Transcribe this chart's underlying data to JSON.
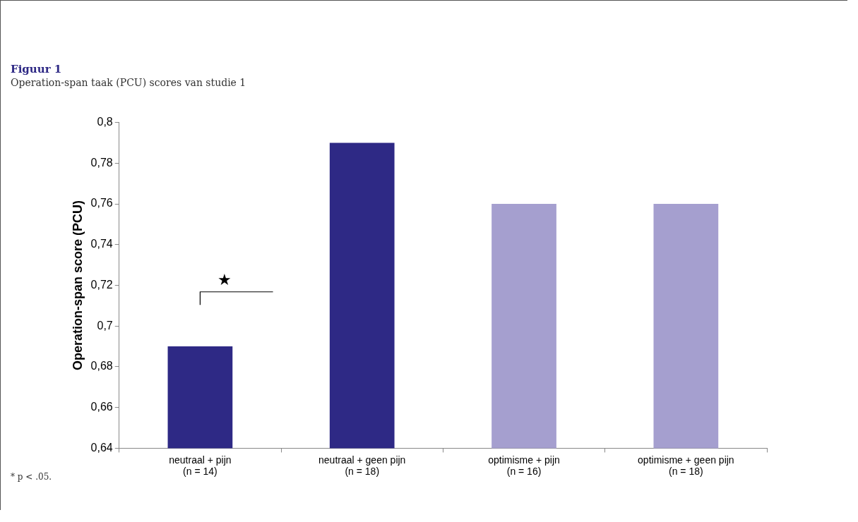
{
  "chart_data": {
    "type": "bar",
    "title": "Figuur 1",
    "subtitle": "Operation-span taak (PCU) scores van studie 1",
    "ylabel": "Operation-span score (PCU)",
    "categories": [
      "neutraal + pijn\n(n = 14)",
      "neutraal + geen pijn\n(n = 18)",
      "optimisme + pijn\n(n = 16)",
      "optimisme + geen pijn\n(n = 18)"
    ],
    "values": [
      0.69,
      0.79,
      0.76,
      0.76
    ],
    "colors": [
      "#2e2985",
      "#2e2985",
      "#a59fcf",
      "#a59fcf"
    ],
    "ylim": [
      0.64,
      0.8
    ],
    "yticks": [
      {
        "value": 0.64,
        "label": "0,64"
      },
      {
        "value": 0.66,
        "label": "0,66"
      },
      {
        "value": 0.68,
        "label": "0,68"
      },
      {
        "value": 0.7,
        "label": "0,7"
      },
      {
        "value": 0.72,
        "label": "0,72"
      },
      {
        "value": 0.74,
        "label": "0,74"
      },
      {
        "value": 0.76,
        "label": "0,76"
      },
      {
        "value": 0.78,
        "label": "0,78"
      },
      {
        "value": 0.8,
        "label": "0,8"
      }
    ],
    "grid": false,
    "legend": false,
    "annotations": [
      "★",
      "* p < .05."
    ]
  }
}
